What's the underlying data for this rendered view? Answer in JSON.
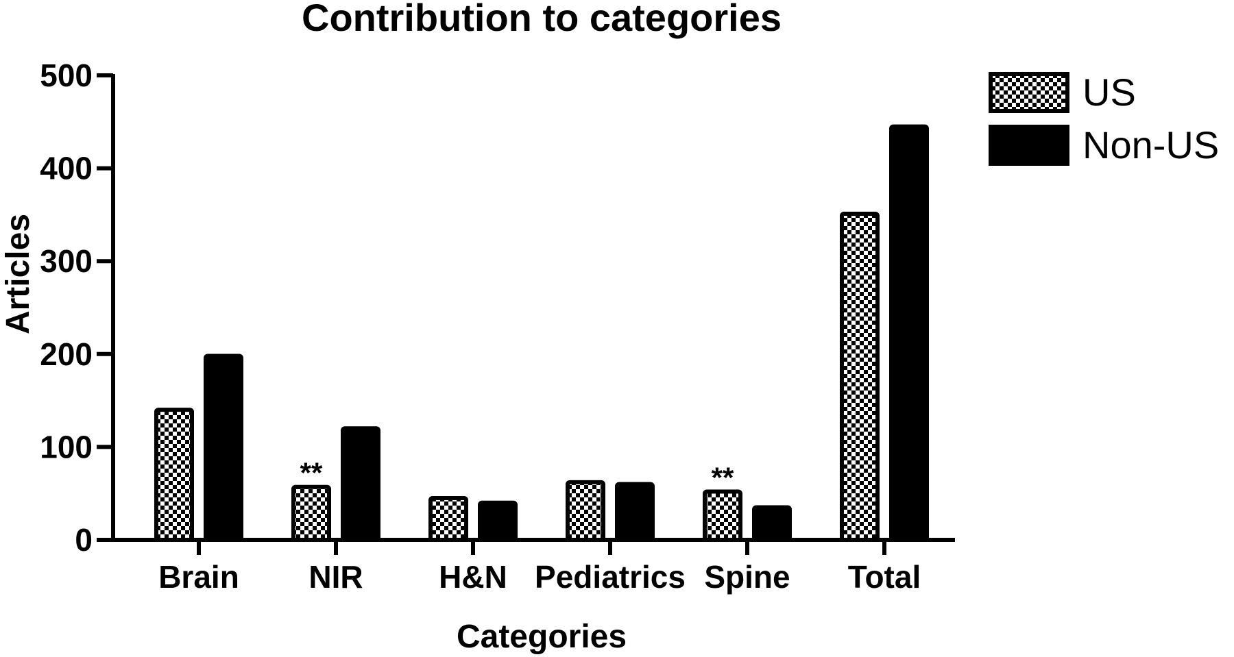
{
  "chart_data": {
    "type": "bar",
    "title": "Contribution to categories",
    "xlabel": "Categories",
    "ylabel": "Articles",
    "ylim": [
      0,
      500
    ],
    "yticks": [
      "0",
      "100",
      "200",
      "300",
      "400",
      "500"
    ],
    "grid": false,
    "legend_position": "top-right",
    "categories": [
      "Brain",
      "NIR",
      "H&N",
      "Pediatrics",
      "Spine",
      "Total"
    ],
    "series": [
      {
        "name": "US",
        "pattern": "checkerboard",
        "color": "#000000",
        "values": [
          140,
          57,
          45,
          62,
          52,
          351
        ]
      },
      {
        "name": "Non-US",
        "pattern": "solid",
        "color": "#000000",
        "values": [
          198,
          120,
          40,
          60,
          35,
          445
        ]
      }
    ],
    "annotations": [
      {
        "text": "**",
        "category": "NIR",
        "series": "US"
      },
      {
        "text": "**",
        "category": "Spine",
        "series": "US"
      }
    ]
  }
}
